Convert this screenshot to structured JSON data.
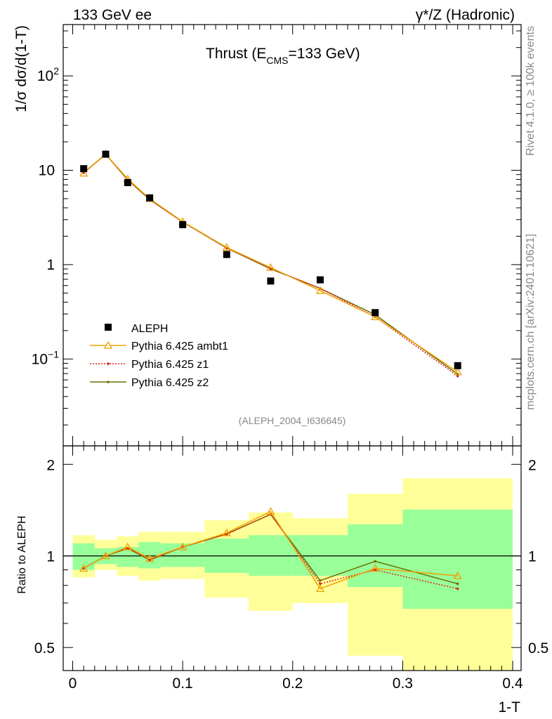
{
  "header": {
    "left": "133 GeV ee",
    "right": "γ*/Z (Hadronic)"
  },
  "side": {
    "rivet": "Rivet 4.1.0, ≥ 100k events",
    "mcplots": "mcplots.cern.ch [arXiv:2401.10621]"
  },
  "colors": {
    "data": "#000000",
    "ambt1": "#f0a000",
    "z1": "#e02020",
    "z2": "#6b7000",
    "band_inner": "#99ff99",
    "band_outer": "#ffff99"
  },
  "chart_data": [
    {
      "type": "line",
      "title": "Thrust (E_CMS=133 GeV)",
      "title_main": "Thrust (E",
      "title_sub": "CMS",
      "title_end": "=133 GeV)",
      "ylabel": "1/σ  dσ/d(1-T)",
      "yscale": "log",
      "ylim": [
        0.012,
        350
      ],
      "xlim": [
        -0.01,
        0.4
      ],
      "ytick_labels": [
        {
          "value": 0.1,
          "base": "10",
          "exp": "−1"
        },
        {
          "value": 1,
          "base": "1",
          "exp": ""
        },
        {
          "value": 10,
          "base": "10",
          "exp": ""
        },
        {
          "value": 100,
          "base": "10",
          "exp": "2"
        }
      ],
      "analysis_id": "(ALEPH_2004_I636645)",
      "x": [
        0.01,
        0.03,
        0.05,
        0.07,
        0.1,
        0.14,
        0.18,
        0.225,
        0.275,
        0.35
      ],
      "data": {
        "name": "ALEPH",
        "values": [
          10.4,
          14.8,
          7.4,
          5.1,
          2.65,
          1.28,
          0.67,
          0.69,
          0.31,
          0.085
        ]
      },
      "series": [
        {
          "name": "Pythia 6.425 ambt1",
          "key": "ambt1",
          "values": [
            9.3,
            14.8,
            8.1,
            5.0,
            2.85,
            1.52,
            0.93,
            0.53,
            0.28,
            0.073
          ]
        },
        {
          "name": "Pythia 6.425 z1",
          "key": "z1",
          "values": [
            9.4,
            14.7,
            8.0,
            4.9,
            2.83,
            1.5,
            0.91,
            0.56,
            0.28,
            0.066
          ]
        },
        {
          "name": "Pythia 6.425 z2",
          "key": "z2",
          "values": [
            9.4,
            14.8,
            7.9,
            4.9,
            2.83,
            1.5,
            0.9,
            0.56,
            0.295,
            0.069
          ]
        }
      ]
    },
    {
      "type": "line",
      "ylabel": "Ratio to ALEPH",
      "xlabel": "1-T",
      "ylim": [
        0.42,
        2.3
      ],
      "xlim": [
        -0.01,
        0.4
      ],
      "yticks": [
        0.5,
        1,
        2
      ],
      "ytick_labels": [
        "0.5",
        "1",
        "2"
      ],
      "xticks": [
        0,
        0.1,
        0.2,
        0.3,
        0.4
      ],
      "xtick_labels": [
        "0",
        "0.1",
        "0.2",
        "0.3",
        "0.4"
      ],
      "reference_line": 1,
      "bands": [
        {
          "x0": 0.0,
          "x1": 0.02,
          "inner": [
            0.9,
            1.1
          ],
          "outer": [
            0.85,
            1.17
          ]
        },
        {
          "x0": 0.02,
          "x1": 0.04,
          "inner": [
            0.94,
            1.06
          ],
          "outer": [
            0.9,
            1.13
          ]
        },
        {
          "x0": 0.04,
          "x1": 0.06,
          "inner": [
            0.92,
            1.07
          ],
          "outer": [
            0.86,
            1.16
          ]
        },
        {
          "x0": 0.06,
          "x1": 0.08,
          "inner": [
            0.91,
            1.11
          ],
          "outer": [
            0.83,
            1.2
          ]
        },
        {
          "x0": 0.08,
          "x1": 0.12,
          "inner": [
            0.92,
            1.1
          ],
          "outer": [
            0.84,
            1.2
          ]
        },
        {
          "x0": 0.12,
          "x1": 0.16,
          "inner": [
            0.88,
            1.14
          ],
          "outer": [
            0.73,
            1.31
          ]
        },
        {
          "x0": 0.16,
          "x1": 0.2,
          "inner": [
            0.86,
            1.17
          ],
          "outer": [
            0.66,
            1.39
          ]
        },
        {
          "x0": 0.2,
          "x1": 0.25,
          "inner": [
            0.86,
            1.17
          ],
          "outer": [
            0.7,
            1.33
          ]
        },
        {
          "x0": 0.25,
          "x1": 0.3,
          "inner": [
            0.79,
            1.27
          ],
          "outer": [
            0.47,
            1.6
          ]
        },
        {
          "x0": 0.3,
          "x1": 0.4,
          "inner": [
            0.67,
            1.42
          ],
          "outer": [
            0.42,
            1.8
          ]
        }
      ],
      "series": [
        {
          "name": "Pythia 6.425 ambt1",
          "key": "ambt1",
          "values": [
            0.91,
            1.0,
            1.07,
            0.98,
            1.07,
            1.19,
            1.4,
            0.78,
            0.91,
            0.86
          ]
        },
        {
          "name": "Pythia 6.425 z1",
          "key": "z1",
          "values": [
            0.91,
            1.0,
            1.06,
            0.97,
            1.07,
            1.18,
            1.37,
            0.81,
            0.9,
            0.78
          ]
        },
        {
          "name": "Pythia 6.425 z2",
          "key": "z2",
          "values": [
            0.91,
            1.0,
            1.06,
            0.97,
            1.07,
            1.18,
            1.37,
            0.83,
            0.96,
            0.81
          ]
        }
      ]
    }
  ]
}
